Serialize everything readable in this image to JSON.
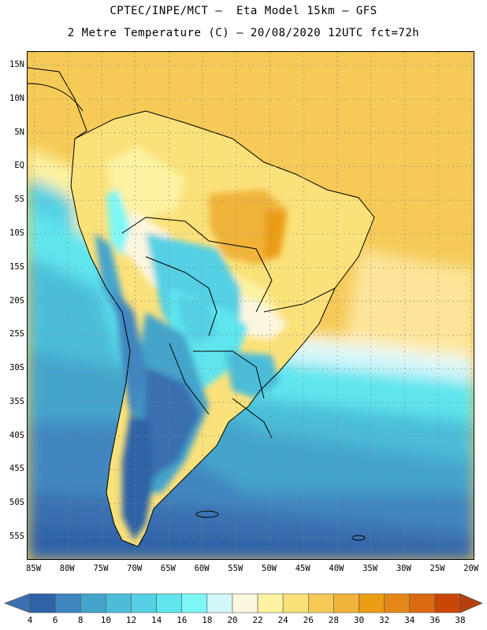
{
  "title_line1": "CPTEC/INPE/MCT –  Eta Model 15km – GFS",
  "title_line2": "2 Metre Temperature (C) – 20/08/2020 12UTC fct=72h",
  "map": {
    "lon_range": [
      -86,
      -19.5
    ],
    "lat_range": [
      17,
      -58.5
    ],
    "lat_ticks": [
      {
        "value": 15,
        "label": "15N"
      },
      {
        "value": 10,
        "label": "10N"
      },
      {
        "value": 5,
        "label": "5N"
      },
      {
        "value": 0,
        "label": "EQ"
      },
      {
        "value": -5,
        "label": "5S"
      },
      {
        "value": -10,
        "label": "10S"
      },
      {
        "value": -15,
        "label": "15S"
      },
      {
        "value": -20,
        "label": "20S"
      },
      {
        "value": -25,
        "label": "25S"
      },
      {
        "value": -30,
        "label": "30S"
      },
      {
        "value": -35,
        "label": "35S"
      },
      {
        "value": -40,
        "label": "40S"
      },
      {
        "value": -45,
        "label": "45S"
      },
      {
        "value": -50,
        "label": "50S"
      },
      {
        "value": -55,
        "label": "55S"
      }
    ],
    "lon_ticks": [
      {
        "value": -85,
        "label": "85W"
      },
      {
        "value": -80,
        "label": "80W"
      },
      {
        "value": -75,
        "label": "75W"
      },
      {
        "value": -70,
        "label": "70W"
      },
      {
        "value": -65,
        "label": "65W"
      },
      {
        "value": -60,
        "label": "60W"
      },
      {
        "value": -55,
        "label": "55W"
      },
      {
        "value": -50,
        "label": "50W"
      },
      {
        "value": -45,
        "label": "45W"
      },
      {
        "value": -40,
        "label": "40W"
      },
      {
        "value": -35,
        "label": "35W"
      },
      {
        "value": -30,
        "label": "30W"
      },
      {
        "value": -25,
        "label": "25W"
      },
      {
        "value": -20,
        "label": "20W"
      }
    ],
    "grid": true
  },
  "colorbar": {
    "labels": [
      "4",
      "6",
      "8",
      "10",
      "12",
      "14",
      "16",
      "18",
      "20",
      "22",
      "24",
      "26",
      "28",
      "30",
      "32",
      "34",
      "36",
      "38"
    ],
    "colors": [
      "#3a6fb0",
      "#2f63a8",
      "#3f86c0",
      "#44a4cc",
      "#4cbdd9",
      "#55d0e4",
      "#5ee5ee",
      "#7ff7f7",
      "#d3f6fa",
      "#fcf6df",
      "#fcf2a2",
      "#fbe17a",
      "#f5ca57",
      "#f0b43b",
      "#eb9d13",
      "#e28718",
      "#dc6a0e",
      "#c84707",
      "#b5400b"
    ]
  }
}
